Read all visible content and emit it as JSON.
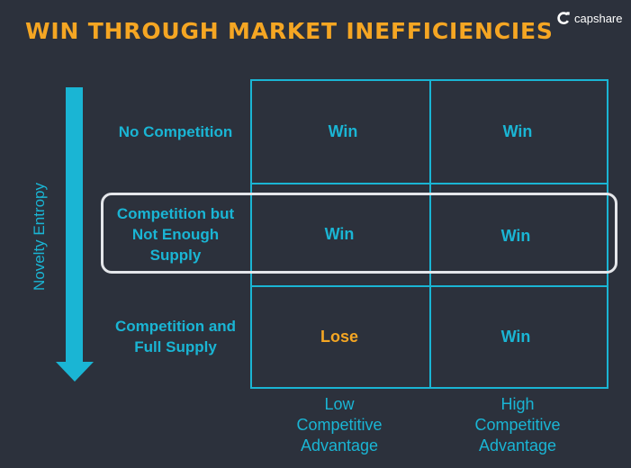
{
  "title": "WIN THROUGH MARKET INEFFICIENCIES",
  "brand": {
    "name": "capshare",
    "icon": "capshare-logo-icon"
  },
  "colors": {
    "background": "#2c313c",
    "accent": "#1ab5d4",
    "title": "#f5a623",
    "lose": "#f5a623",
    "highlight": "#e4e6ea"
  },
  "y_axis_label": "Novelty Entropy",
  "rows": [
    {
      "label": "No Competition",
      "cells": [
        "Win",
        "Win"
      ]
    },
    {
      "label": "Competition but Not Enough Supply",
      "cells": [
        "Win",
        "Win"
      ]
    },
    {
      "label": "Competition and Full Supply",
      "cells": [
        "Lose",
        "Win"
      ]
    }
  ],
  "columns": [
    {
      "label": "Low Competitive Advantage"
    },
    {
      "label": "High Competitive Advantage"
    }
  ],
  "highlighted_row": "Competition but Not Enough Supply"
}
